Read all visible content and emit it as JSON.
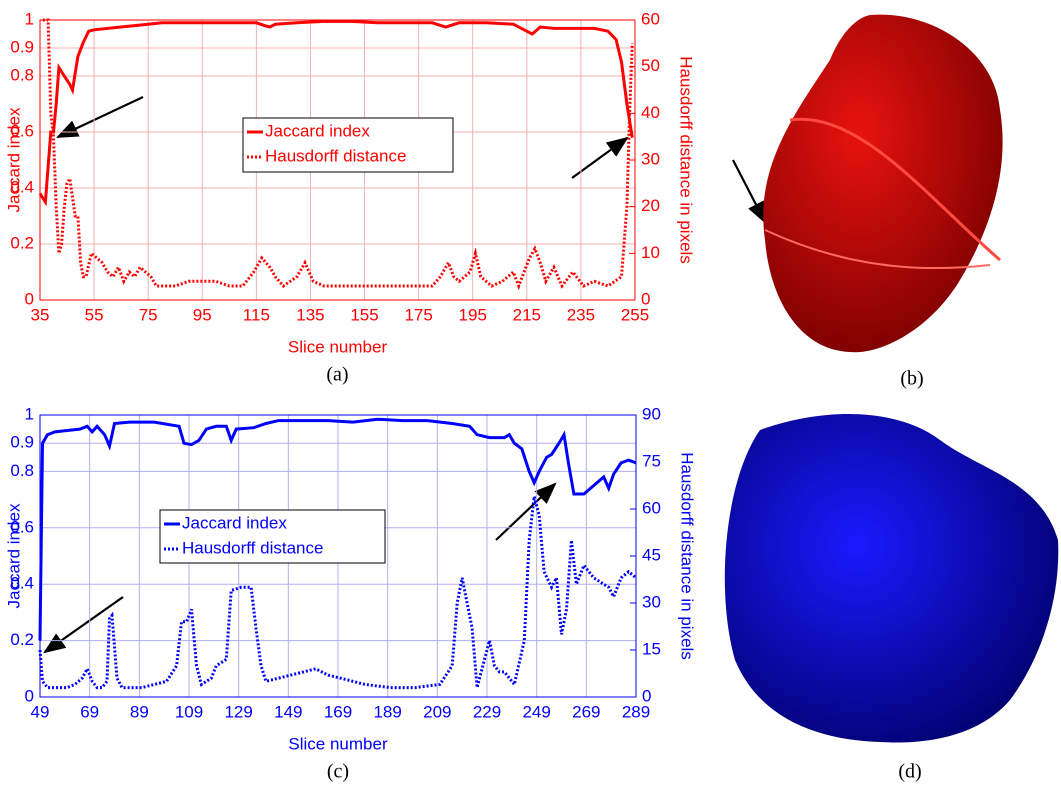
{
  "chart_data": [
    {
      "type": "line",
      "panel_label": "(a)",
      "xlabel": "Slice number",
      "ylabel": "Jaccard index",
      "y2label": "Hausdorff distance in pixels",
      "xlim": [
        35,
        255
      ],
      "xticks": [
        35,
        55,
        75,
        95,
        115,
        135,
        155,
        175,
        195,
        215,
        235,
        255
      ],
      "ylim": [
        0,
        1
      ],
      "yticks": [
        0,
        0.2,
        0.4,
        0.6,
        0.8,
        0.9,
        1
      ],
      "y2lim": [
        0,
        60
      ],
      "y2ticks": [
        0,
        10,
        20,
        30,
        40,
        50,
        60
      ],
      "grid": true,
      "color": "#ff0000",
      "series": [
        {
          "name": "Jaccard index",
          "color": "#ff0000",
          "style": "solid",
          "x": [
            35,
            37,
            39,
            40,
            41,
            42,
            44,
            46,
            47,
            49,
            51,
            53,
            55,
            60,
            65,
            70,
            75,
            80,
            90,
            100,
            110,
            115,
            118,
            120,
            122,
            130,
            140,
            150,
            160,
            170,
            180,
            185,
            190,
            200,
            210,
            215,
            217,
            220,
            225,
            230,
            240,
            245,
            248,
            250,
            252,
            254
          ],
          "values": [
            0.38,
            0.35,
            0.6,
            0.6,
            0.7,
            0.83,
            0.8,
            0.77,
            0.75,
            0.87,
            0.92,
            0.96,
            0.965,
            0.97,
            0.975,
            0.98,
            0.985,
            0.99,
            0.99,
            0.99,
            0.99,
            0.99,
            0.98,
            0.975,
            0.985,
            0.99,
            0.995,
            0.995,
            0.99,
            0.99,
            0.99,
            0.975,
            0.99,
            0.99,
            0.985,
            0.96,
            0.95,
            0.975,
            0.97,
            0.97,
            0.97,
            0.96,
            0.93,
            0.85,
            0.7,
            0.58
          ]
        },
        {
          "name": "Hausdorff distance",
          "color": "#ff0000",
          "style": "dotted",
          "axis": "y2",
          "x": [
            36,
            38,
            39,
            40,
            41,
            42,
            43,
            44,
            45,
            46,
            47,
            48,
            49,
            50,
            51,
            52,
            54,
            56,
            58,
            60,
            62,
            64,
            66,
            68,
            70,
            72,
            74,
            76,
            78,
            85,
            90,
            95,
            100,
            105,
            110,
            114,
            117,
            120,
            122,
            125,
            130,
            133,
            136,
            140,
            150,
            160,
            170,
            180,
            183,
            186,
            188,
            190,
            194,
            196,
            198,
            202,
            206,
            210,
            212,
            216,
            218,
            220,
            222,
            225,
            228,
            232,
            236,
            240,
            245,
            250,
            252,
            253,
            254
          ],
          "values": [
            60,
            60,
            40,
            35,
            20,
            10,
            12,
            20,
            25,
            26,
            22,
            18,
            18,
            8,
            5,
            5,
            10,
            9,
            8,
            6,
            5,
            7,
            4,
            6,
            5,
            7,
            6,
            5,
            3,
            3,
            4,
            4,
            4,
            3,
            3,
            6,
            9,
            7,
            5,
            3,
            5,
            8,
            4,
            3,
            3,
            3,
            3,
            3,
            5,
            8,
            5,
            4,
            6,
            10,
            5,
            3,
            4,
            6,
            3,
            9,
            11,
            8,
            4,
            7,
            3,
            6,
            3,
            4,
            3,
            5,
            20,
            40,
            55
          ]
        }
      ]
    },
    {
      "type": "line",
      "panel_label": "(c)",
      "xlabel": "Slice number",
      "ylabel": "Jaccard index",
      "y2label": "Hausdorff distance in pixels",
      "xlim": [
        49,
        289
      ],
      "xticks": [
        49,
        69,
        89,
        109,
        129,
        149,
        169,
        189,
        209,
        229,
        249,
        269,
        289
      ],
      "ylim": [
        0,
        1
      ],
      "yticks": [
        0,
        0.2,
        0.4,
        0.6,
        0.8,
        0.9,
        1
      ],
      "y2lim": [
        0,
        90
      ],
      "y2ticks": [
        0,
        15,
        30,
        45,
        60,
        75,
        90
      ],
      "grid": true,
      "color": "#0000ff",
      "series": [
        {
          "name": "Jaccard index",
          "color": "#0000ff",
          "style": "solid",
          "x": [
            49,
            50,
            52,
            55,
            60,
            65,
            68,
            70,
            72,
            75,
            77,
            79,
            85,
            95,
            105,
            107,
            110,
            113,
            116,
            120,
            124,
            126,
            128,
            135,
            140,
            145,
            155,
            165,
            175,
            185,
            195,
            205,
            215,
            222,
            225,
            230,
            236,
            238,
            240,
            243,
            246,
            248,
            250,
            253,
            255,
            258,
            260,
            262,
            264,
            268,
            272,
            276,
            278,
            280,
            283,
            286,
            289
          ],
          "values": [
            0.2,
            0.9,
            0.93,
            0.94,
            0.945,
            0.95,
            0.96,
            0.94,
            0.96,
            0.93,
            0.89,
            0.97,
            0.975,
            0.975,
            0.96,
            0.9,
            0.895,
            0.91,
            0.95,
            0.96,
            0.96,
            0.91,
            0.95,
            0.955,
            0.97,
            0.98,
            0.98,
            0.98,
            0.975,
            0.985,
            0.98,
            0.98,
            0.97,
            0.96,
            0.93,
            0.92,
            0.92,
            0.93,
            0.9,
            0.88,
            0.8,
            0.76,
            0.8,
            0.85,
            0.86,
            0.9,
            0.93,
            0.82,
            0.72,
            0.72,
            0.75,
            0.78,
            0.74,
            0.79,
            0.83,
            0.84,
            0.83
          ]
        },
        {
          "name": "Hausdorff distance",
          "color": "#0000ff",
          "style": "dotted",
          "axis": "y2",
          "x": [
            49,
            50,
            52,
            56,
            60,
            63,
            66,
            68,
            70,
            72,
            74,
            76,
            77,
            78,
            80,
            82,
            90,
            95,
            100,
            104,
            106,
            108,
            110,
            112,
            114,
            118,
            120,
            124,
            126,
            130,
            134,
            136,
            138,
            140,
            145,
            150,
            160,
            165,
            170,
            175,
            180,
            190,
            200,
            210,
            215,
            217,
            219,
            221,
            223,
            225,
            228,
            230,
            232,
            234,
            236,
            240,
            244,
            246,
            248,
            250,
            252,
            255,
            257,
            259,
            261,
            263,
            265,
            268,
            272,
            276,
            278,
            280,
            283,
            286,
            289
          ],
          "values": [
            15,
            5,
            3,
            3,
            3,
            4,
            6,
            9,
            5,
            3,
            3,
            5,
            25,
            26,
            6,
            3,
            3,
            4,
            5,
            10,
            24,
            24,
            28,
            10,
            4,
            6,
            10,
            12,
            34,
            35,
            35,
            22,
            10,
            5,
            6,
            7,
            9,
            7,
            6,
            5,
            4,
            3,
            3,
            4,
            10,
            30,
            38,
            30,
            22,
            3,
            12,
            18,
            10,
            8,
            8,
            4,
            18,
            50,
            64,
            58,
            40,
            35,
            38,
            20,
            28,
            50,
            36,
            42,
            38,
            36,
            35,
            32,
            38,
            40,
            38
          ]
        }
      ]
    }
  ],
  "images": [
    {
      "panel_label": "(b)"
    },
    {
      "panel_label": "(d)"
    }
  ]
}
